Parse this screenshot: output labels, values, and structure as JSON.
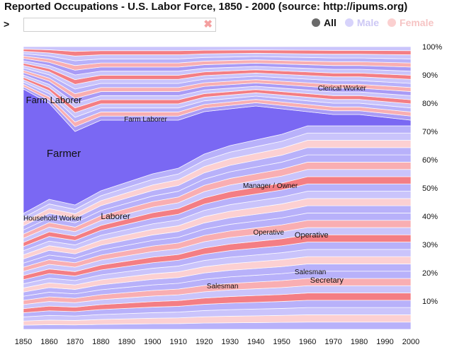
{
  "title": "Reported Occupations - U.S. Labor Force, 1850 - 2000 (source: http://ipums.org)",
  "search": {
    "prompt": ">",
    "value": "",
    "placeholder": "",
    "clear_glyph": "✖"
  },
  "filters": [
    {
      "label": "All",
      "active": true
    },
    {
      "label": "Male",
      "active": false
    },
    {
      "label": "Female",
      "active": false
    }
  ],
  "colors": {
    "farmer": "#7a68f3",
    "farm_laborer": "#a99bf6",
    "male_light": "#b8b1fa",
    "male_lighter": "#cac4fb",
    "female": "#f47e84",
    "female_light": "#f9aeb2",
    "female_lighter": "#fcd0d2",
    "all_dot": "#6a6a6a"
  },
  "chart_data": {
    "type": "area",
    "x": [
      1850,
      1860,
      1870,
      1880,
      1890,
      1900,
      1910,
      1920,
      1930,
      1940,
      1950,
      1960,
      1970,
      1980,
      1990,
      2000
    ],
    "xtick_labels": [
      "1850",
      "1860",
      "1870",
      "1880",
      "1890",
      "1900",
      "1910",
      "1920",
      "1930",
      "1940",
      "1950",
      "1960",
      "1970",
      "1980",
      "1990",
      "2000"
    ],
    "ytick_labels": [
      "10%",
      "20%",
      "30%",
      "40%",
      "50%",
      "60%",
      "70%",
      "80%",
      "90%",
      "100%"
    ],
    "ylim": [
      0,
      100
    ],
    "boundaries": {
      "farmer_bottom": [
        41,
        46,
        44,
        49,
        52,
        55,
        57,
        62,
        65,
        67,
        69,
        72,
        72,
        72,
        72,
        72
      ],
      "farm_laborer_bottom": [
        85,
        80,
        70,
        74,
        74,
        74,
        74,
        77,
        78,
        79,
        78,
        77,
        76,
        76,
        75,
        74
      ],
      "farm_laborer_top": [
        100,
        100,
        100,
        100,
        100,
        100,
        100,
        100,
        100,
        100,
        100,
        100,
        100,
        100,
        100,
        100
      ]
    },
    "annotations": [
      {
        "text": "Farmer",
        "x": 1859,
        "y": 61,
        "size": 15
      },
      {
        "text": "Farm Laborer",
        "x": 1851,
        "y": 80,
        "size": 13
      },
      {
        "text": "Farm Laborer",
        "x": 1889,
        "y": 73.5,
        "size": 10
      },
      {
        "text": "Clerical Worker",
        "x": 1964,
        "y": 84.5,
        "size": 10
      },
      {
        "text": "Household Worker",
        "x": 1850,
        "y": 38.5,
        "size": 10
      },
      {
        "text": "Laborer",
        "x": 1880,
        "y": 39,
        "size": 12
      },
      {
        "text": "Manager / Owner",
        "x": 1935,
        "y": 50,
        "size": 10
      },
      {
        "text": "Operative",
        "x": 1939,
        "y": 33.5,
        "size": 10
      },
      {
        "text": "Operative",
        "x": 1955,
        "y": 32.5,
        "size": 11
      },
      {
        "text": "Salesman",
        "x": 1955,
        "y": 19.5,
        "size": 10
      },
      {
        "text": "Secretary",
        "x": 1961,
        "y": 16.5,
        "size": 11
      },
      {
        "text": "Salesman",
        "x": 1921,
        "y": 14.5,
        "size": 10
      }
    ]
  }
}
